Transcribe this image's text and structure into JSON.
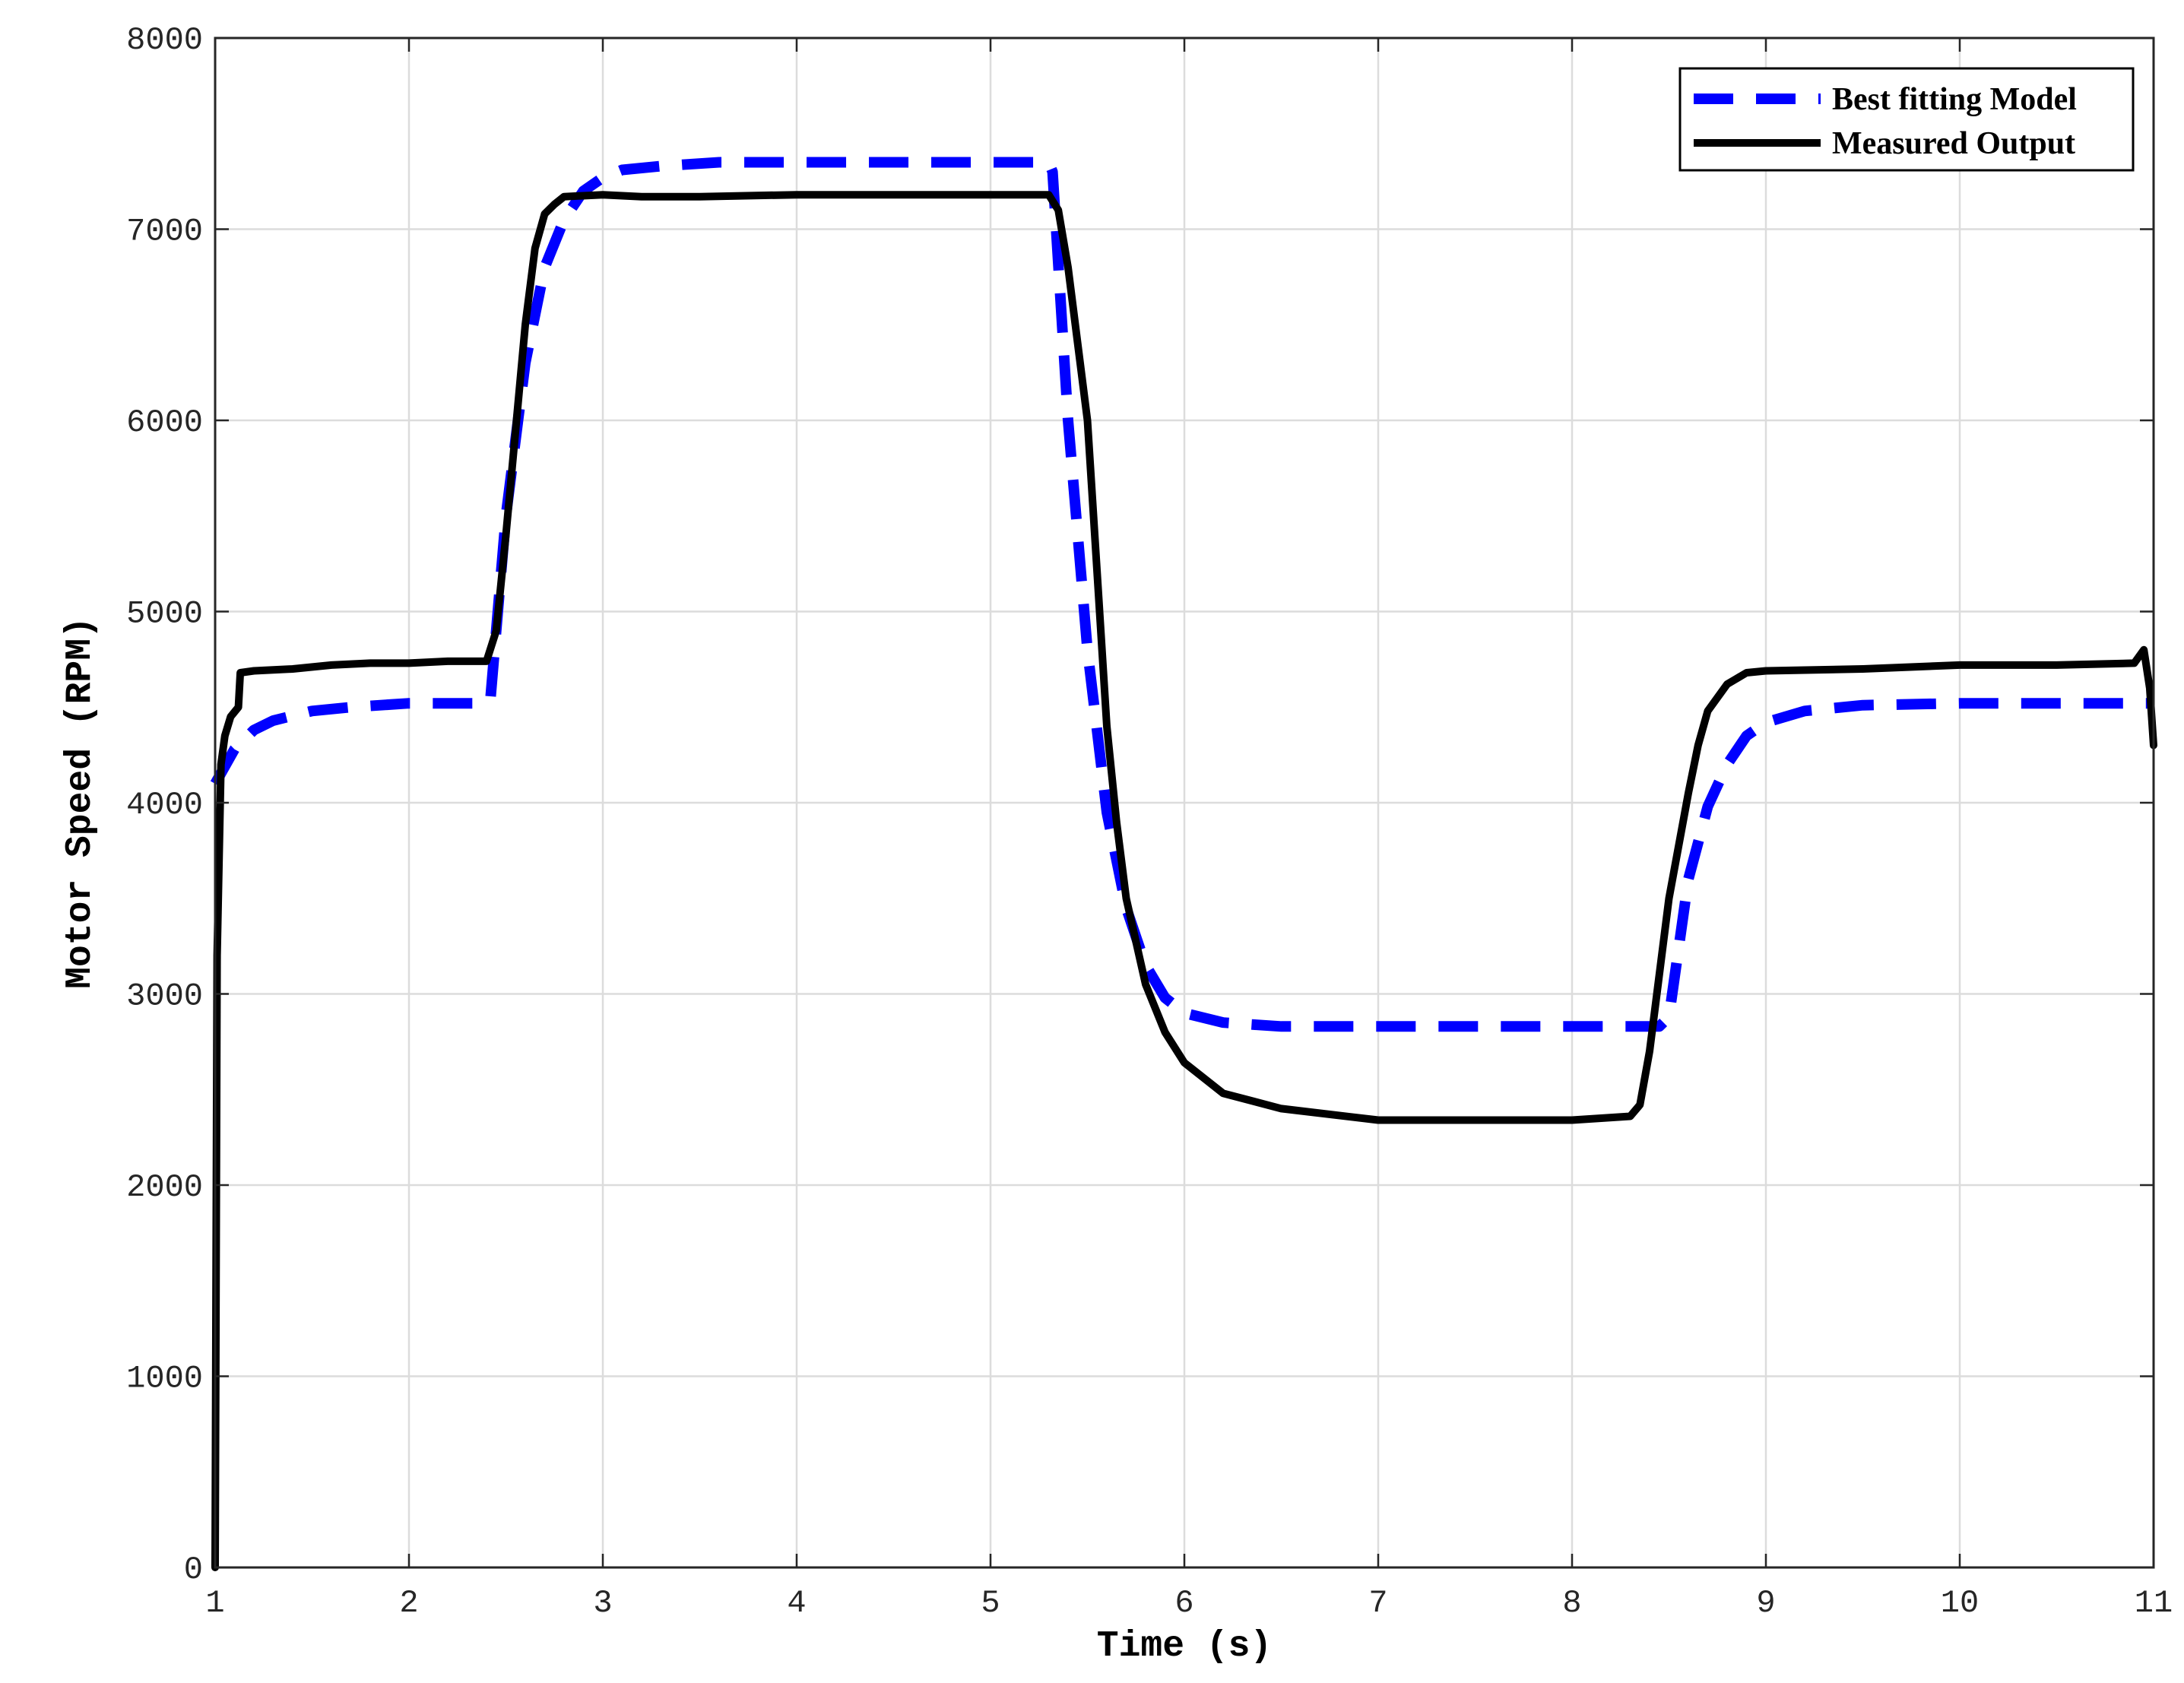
{
  "chart_data": {
    "type": "line",
    "title": "",
    "xlabel": "Time (s)",
    "ylabel": "Motor Speed (RPM)",
    "xlim": [
      1,
      11
    ],
    "ylim": [
      0,
      8000
    ],
    "xticks": [
      1,
      2,
      3,
      4,
      5,
      6,
      7,
      8,
      9,
      10,
      11
    ],
    "yticks": [
      0,
      1000,
      2000,
      3000,
      4000,
      5000,
      6000,
      7000,
      8000
    ],
    "xtick_labels": [
      "1",
      "2",
      "3",
      "4",
      "5",
      "6",
      "7",
      "8",
      "9",
      "10",
      "11"
    ],
    "ytick_labels": [
      "0",
      "1000",
      "2000",
      "3000",
      "4000",
      "5000",
      "6000",
      "7000",
      "8000"
    ],
    "grid": true,
    "legend_position": "top-right",
    "series": [
      {
        "name": "Best fitting  Model",
        "color": "#0000ff",
        "style": "dashed",
        "x": [
          1.0,
          1.1,
          1.2,
          1.3,
          1.5,
          1.7,
          2.0,
          2.2,
          2.4,
          2.42,
          2.5,
          2.6,
          2.7,
          2.8,
          2.9,
          3.0,
          3.1,
          3.3,
          3.6,
          4.0,
          4.5,
          5.0,
          5.3,
          5.32,
          5.4,
          5.5,
          5.6,
          5.7,
          5.8,
          5.9,
          6.0,
          6.2,
          6.5,
          7.0,
          7.5,
          8.0,
          8.45,
          8.5,
          8.6,
          8.7,
          8.8,
          8.9,
          9.0,
          9.2,
          9.5,
          10.0,
          10.5,
          11.0
        ],
        "y": [
          4100,
          4280,
          4380,
          4430,
          4480,
          4500,
          4520,
          4520,
          4520,
          4540,
          5500,
          6300,
          6800,
          7050,
          7200,
          7270,
          7310,
          7330,
          7350,
          7350,
          7350,
          7350,
          7350,
          7300,
          6000,
          4800,
          3950,
          3450,
          3150,
          2980,
          2900,
          2850,
          2830,
          2830,
          2830,
          2830,
          2830,
          2880,
          3600,
          3980,
          4200,
          4350,
          4420,
          4480,
          4510,
          4520,
          4520,
          4520
        ]
      },
      {
        "name": "Measured Output",
        "color": "#000000",
        "style": "solid",
        "x": [
          1.0,
          1.01,
          1.03,
          1.05,
          1.08,
          1.12,
          1.13,
          1.2,
          1.4,
          1.6,
          1.8,
          2.0,
          2.2,
          2.4,
          2.45,
          2.5,
          2.55,
          2.6,
          2.65,
          2.7,
          2.75,
          2.8,
          3.0,
          3.2,
          3.5,
          4.0,
          4.5,
          5.0,
          5.3,
          5.35,
          5.4,
          5.5,
          5.55,
          5.6,
          5.65,
          5.7,
          5.8,
          5.9,
          6.0,
          6.2,
          6.5,
          7.0,
          7.5,
          8.0,
          8.3,
          8.35,
          8.4,
          8.5,
          8.6,
          8.65,
          8.7,
          8.8,
          8.9,
          9.0,
          9.5,
          10.0,
          10.5,
          10.9,
          10.95,
          10.98,
          11.0
        ],
        "y": [
          0,
          3200,
          4200,
          4350,
          4450,
          4500,
          4680,
          4690,
          4700,
          4720,
          4730,
          4730,
          4740,
          4740,
          4900,
          5400,
          5950,
          6500,
          6900,
          7080,
          7130,
          7170,
          7180,
          7170,
          7170,
          7180,
          7180,
          7180,
          7180,
          7100,
          6800,
          6000,
          5200,
          4400,
          3900,
          3500,
          3050,
          2800,
          2640,
          2480,
          2400,
          2340,
          2340,
          2340,
          2360,
          2420,
          2700,
          3500,
          4050,
          4300,
          4480,
          4620,
          4680,
          4690,
          4700,
          4720,
          4720,
          4730,
          4800,
          4600,
          4300
        ]
      }
    ]
  }
}
